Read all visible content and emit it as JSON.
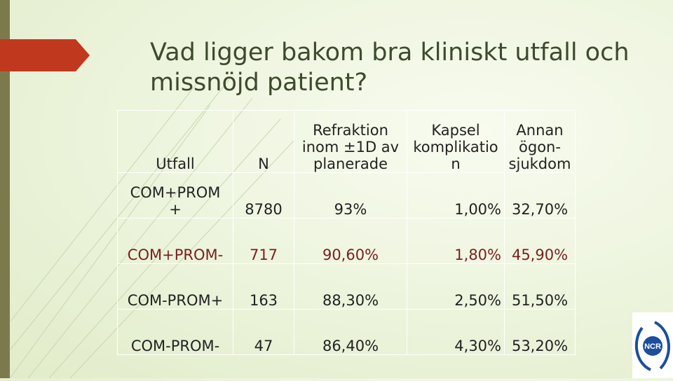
{
  "title": "Vad ligger bakom bra kliniskt utfall och missnöjd patient?",
  "table": {
    "headers": [
      [
        "Utfall"
      ],
      [
        "N"
      ],
      [
        "Refraktion",
        "inom ±1D av",
        "planerade"
      ],
      [
        "Kapsel",
        "komplikatio",
        "n"
      ],
      [
        "Annan",
        "ögon-",
        "sjukdom"
      ]
    ],
    "rows": [
      {
        "outcome": [
          "COM+PROM",
          "+"
        ],
        "n": "8780",
        "refraction": "93%",
        "capsule": "1,00%",
        "other": "32,70%"
      },
      {
        "outcome": [
          "COM+PROM-"
        ],
        "n": "717",
        "refraction": "90,60%",
        "capsule": "1,80%",
        "other": "45,90%"
      },
      {
        "outcome": [
          "COM-PROM+"
        ],
        "n": "163",
        "refraction": "88,30%",
        "capsule": "2,50%",
        "other": "51,50%"
      },
      {
        "outcome": [
          "COM-PROM-"
        ],
        "n": "47",
        "refraction": "86,40%",
        "capsule": "4,30%",
        "other": "53,20%"
      }
    ]
  },
  "logo": {
    "text": "NCR",
    "color": "#1b4f9c"
  },
  "colors": {
    "title": "#3d4a2e",
    "accent_arrow": "#c0391e",
    "left_bar": "#7c7a4d",
    "highlight_row": "#7a1f1f"
  }
}
